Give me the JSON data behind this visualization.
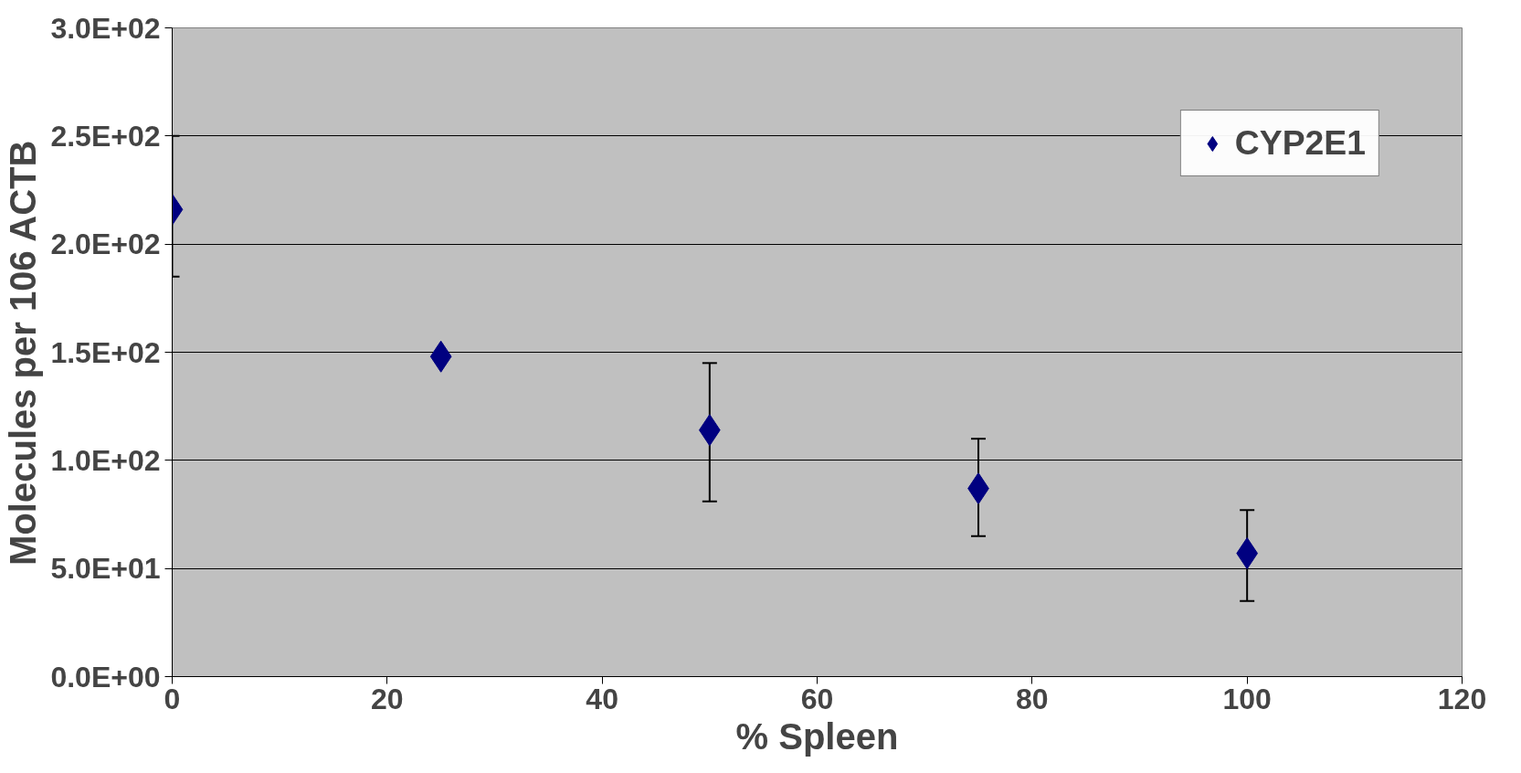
{
  "chart_data": {
    "type": "scatter",
    "xlabel": "% Spleen",
    "ylabel": "Molecules per 106 ACTB",
    "x": [
      0,
      25,
      50,
      75,
      100
    ],
    "series": [
      {
        "name": "CYP2E1",
        "color": "#000080",
        "values": [
          216,
          148,
          114,
          87,
          57
        ],
        "errors": [
          [
            185,
            250
          ],
          null,
          [
            81,
            145
          ],
          [
            65,
            110
          ],
          [
            35,
            77
          ]
        ]
      }
    ],
    "xlim": [
      0,
      120
    ],
    "xticks": [
      0,
      20,
      40,
      60,
      80,
      100,
      120
    ],
    "ylim": [
      0,
      300
    ],
    "yticks": [
      {
        "value": 0,
        "label": "0.0E+00"
      },
      {
        "value": 50,
        "label": "5.0E+01"
      },
      {
        "value": 100,
        "label": "1.0E+02"
      },
      {
        "value": 150,
        "label": "1.5E+02"
      },
      {
        "value": 200,
        "label": "2.0E+02"
      },
      {
        "value": 250,
        "label": "2.5E+02"
      },
      {
        "value": 300,
        "label": "3.0E+02"
      }
    ],
    "grid": "y",
    "legend": "top right",
    "marker": "diamond"
  }
}
